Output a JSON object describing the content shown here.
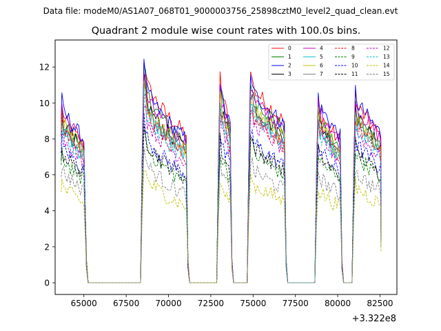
{
  "chart_data": {
    "type": "line",
    "supertitle": "Data file: modeM0/AS1A07_068T01_9000003756_25898cztM0_level2_quad_clean.evt",
    "title": "Quadrant 2 module wise count rates with 100.0s bins.",
    "xlabel": "",
    "ylabel": "",
    "x_offset_label": "+3.322e8",
    "xlim": [
      63300,
      83500
    ],
    "ylim": [
      -0.65,
      13.5
    ],
    "xticks": [
      65000,
      67500,
      70000,
      72500,
      75000,
      77500,
      80000,
      82500
    ],
    "xtick_labels": [
      "65000",
      "67500",
      "70000",
      "72500",
      "75000",
      "77500",
      "80000",
      "82500"
    ],
    "yticks": [
      0,
      2,
      4,
      6,
      8,
      10,
      12
    ],
    "ytick_labels": [
      "0",
      "2",
      "4",
      "6",
      "8",
      "10",
      "12"
    ],
    "grid": false,
    "legend_position": "upper-right",
    "legend_columns": 4,
    "segments": [
      {
        "start": 63700,
        "end": 65050
      },
      {
        "start": 68550,
        "end": 71050
      },
      {
        "start": 73050,
        "end": 73650
      },
      {
        "start": 74850,
        "end": 76850
      },
      {
        "start": 78850,
        "end": 80150
      },
      {
        "start": 81050,
        "end": 82550
      }
    ],
    "levels": [
      [
        9.2,
        11.8,
        10.8,
        10.9,
        9.5,
        9.9
      ],
      [
        9.0,
        11.2,
        10.3,
        10.4,
        9.0,
        9.4
      ],
      [
        9.6,
        11.4,
        10.6,
        10.7,
        9.9,
        10.1
      ],
      [
        8.8,
        10.6,
        9.8,
        9.9,
        8.9,
        9.2
      ],
      [
        9.4,
        11.0,
        10.2,
        10.3,
        9.6,
        9.8
      ],
      [
        8.5,
        10.2,
        9.5,
        9.6,
        8.4,
        8.7
      ],
      [
        8.9,
        10.5,
        9.7,
        9.8,
        8.9,
        9.2
      ],
      [
        8.7,
        10.4,
        9.6,
        9.7,
        8.7,
        9.0
      ],
      [
        8.6,
        10.0,
        9.2,
        9.3,
        8.5,
        8.8
      ],
      [
        6.9,
        8.0,
        7.1,
        7.3,
        6.9,
        7.1
      ],
      [
        7.6,
        8.6,
        7.8,
        7.9,
        7.4,
        7.7
      ],
      [
        7.2,
        8.3,
        7.5,
        7.6,
        7.1,
        7.3
      ],
      [
        8.1,
        9.6,
        8.9,
        9.0,
        8.2,
        8.4
      ],
      [
        8.3,
        9.9,
        9.1,
        9.2,
        8.3,
        8.6
      ],
      [
        5.3,
        6.1,
        5.4,
        5.5,
        5.1,
        5.3
      ],
      [
        6.2,
        7.0,
        6.2,
        6.3,
        5.9,
        6.1
      ]
    ],
    "series": [
      {
        "name": "0",
        "color": "#ff0000",
        "dash": "solid"
      },
      {
        "name": "1",
        "color": "#008000",
        "dash": "solid"
      },
      {
        "name": "2",
        "color": "#0000ff",
        "dash": "solid"
      },
      {
        "name": "3",
        "color": "#000000",
        "dash": "solid"
      },
      {
        "name": "4",
        "color": "#bf00bf",
        "dash": "solid"
      },
      {
        "name": "5",
        "color": "#17becf",
        "dash": "solid"
      },
      {
        "name": "6",
        "color": "#bfbf00",
        "dash": "solid"
      },
      {
        "name": "7",
        "color": "#7f7f7f",
        "dash": "solid"
      },
      {
        "name": "8",
        "color": "#ff0000",
        "dash": "dashed"
      },
      {
        "name": "9",
        "color": "#008000",
        "dash": "dashed"
      },
      {
        "name": "10",
        "color": "#0000ff",
        "dash": "dashed"
      },
      {
        "name": "11",
        "color": "#000000",
        "dash": "dashed"
      },
      {
        "name": "12",
        "color": "#bf00bf",
        "dash": "dashed"
      },
      {
        "name": "13",
        "color": "#17becf",
        "dash": "dashed"
      },
      {
        "name": "14",
        "color": "#bfbf00",
        "dash": "dashed"
      },
      {
        "name": "15",
        "color": "#7f7f7f",
        "dash": "dashed"
      }
    ]
  }
}
